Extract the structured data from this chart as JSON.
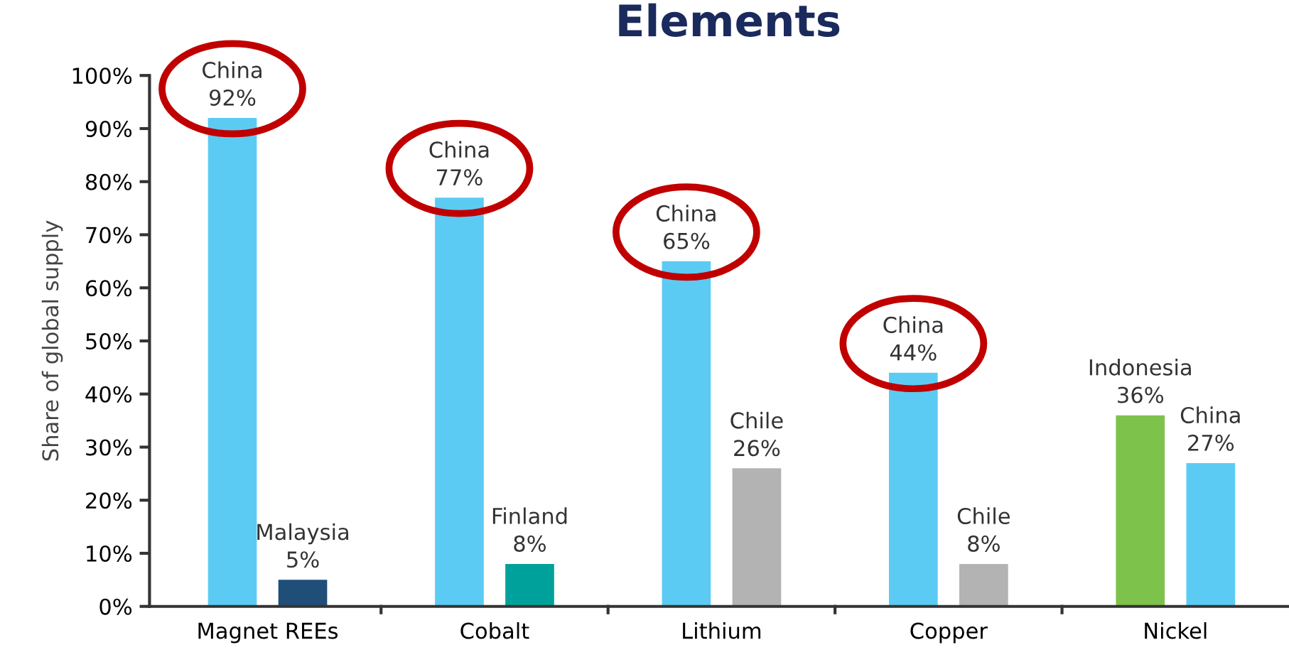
{
  "chart_data": {
    "type": "bar",
    "title": "Elements",
    "ylabel": "Share of global supply",
    "categories": [
      "Magnet REEs",
      "Cobalt",
      "Lithium",
      "Copper",
      "Nickel"
    ],
    "series": [
      {
        "colors": [
          "#5ccbf3",
          "#5ccbf3",
          "#5ccbf3",
          "#5ccbf3",
          "#7dc24b"
        ],
        "values": [
          92,
          77,
          65,
          44,
          36
        ],
        "value_labels": [
          "China\n92%",
          "China\n77%",
          "China\n65%",
          "China\n44%",
          "Indonesia\n36%"
        ]
      },
      {
        "colors": [
          "#1f4e79",
          "#00a19a",
          "#b3b3b3",
          "#b3b3b3",
          "#5ccbf3"
        ],
        "values": [
          5,
          8,
          26,
          8,
          27
        ],
        "value_labels": [
          "Malaysia\n5%",
          "Finland\n8%",
          "Chile\n26%",
          "Chile\n8%",
          "China\n27%"
        ]
      }
    ],
    "ylim": [
      0,
      100
    ],
    "yticks": [
      {
        "value": 0,
        "label": "0%"
      },
      {
        "value": 10,
        "label": "10%"
      },
      {
        "value": 20,
        "label": "20%"
      },
      {
        "value": 30,
        "label": "30%"
      },
      {
        "value": 40,
        "label": "40%"
      },
      {
        "value": 50,
        "label": "50%"
      },
      {
        "value": 60,
        "label": "60%"
      },
      {
        "value": 70,
        "label": "70%"
      },
      {
        "value": 80,
        "label": "80%"
      },
      {
        "value": 90,
        "label": "90%"
      },
      {
        "value": 100,
        "label": "100%"
      }
    ],
    "grid": false
  }
}
